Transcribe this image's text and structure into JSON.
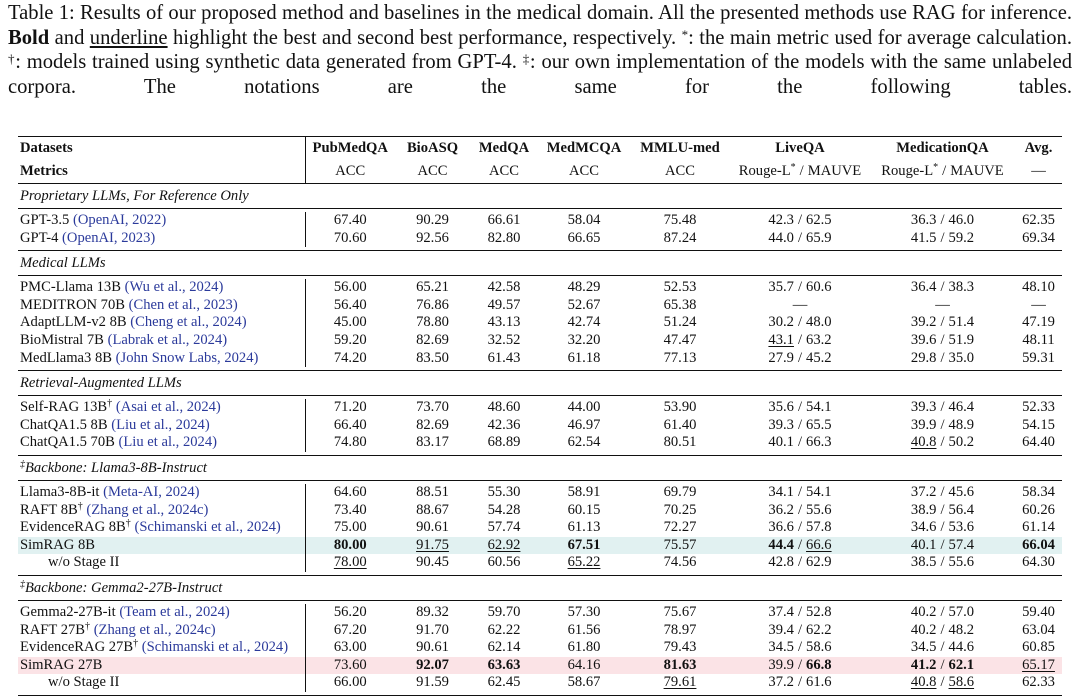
{
  "caption": [
    "Table 1: Results of our proposed method and baselines in the medical domain. All the presented methods use RAG for inference.",
    "Bold",
    "and",
    "underline",
    "highlight the best and second best performance, respectively.",
    "*",
    ": the main metric used for average calculation.",
    "†",
    ": models trained using synthetic data generated from GPT-4.",
    "‡",
    ": our own implementation of the models with the same unlabeled corpora. The notations are the same for the following tables."
  ],
  "table": {
    "separator": "/",
    "header": [
      "Datasets",
      "PubMedQA",
      "BioASQ",
      "MedQA",
      "MedMCQA",
      "MMLU-med",
      "LiveQA",
      "MedicationQA",
      "Avg."
    ],
    "metrics": [
      "Metrics",
      "ACC",
      "ACC",
      "ACC",
      "ACC",
      "ACC",
      [
        {
          "text": "Rouge-L",
          "sup": "*"
        },
        "MAUVE"
      ],
      [
        {
          "text": "Rouge-L",
          "sup": "*"
        },
        "MAUVE"
      ],
      "—"
    ],
    "sections": [
      {
        "title": "Proprietary LLMs, For Reference Only",
        "rows": [
          {
            "name": "GPT-3.5",
            "cite": "(OpenAI, 2022)",
            "cells": [
              "67.40",
              "90.29",
              "66.61",
              "58.04",
              "75.48",
              [
                "42.3",
                "62.5"
              ],
              [
                "36.3",
                "46.0"
              ],
              "62.35"
            ]
          },
          {
            "name": "GPT-4",
            "cite": "(OpenAI, 2023)",
            "cells": [
              "70.60",
              "92.56",
              "82.80",
              "66.65",
              "87.24",
              [
                "44.0",
                "65.9"
              ],
              [
                "41.5",
                "59.2"
              ],
              "69.34"
            ]
          }
        ]
      },
      {
        "title": "Medical LLMs",
        "rows": [
          {
            "name": "PMC-Llama 13B",
            "cite": "(Wu et al., 2024)",
            "cells": [
              "56.00",
              "65.21",
              "42.58",
              "48.29",
              "52.53",
              [
                "35.7",
                "60.6"
              ],
              [
                "36.4",
                "38.3"
              ],
              "48.10"
            ]
          },
          {
            "name": "MEDITRON 70B",
            "cite": "(Chen et al., 2023)",
            "cells": [
              "56.40",
              "76.86",
              "49.57",
              "52.67",
              "65.38",
              "—",
              "—",
              "—"
            ]
          },
          {
            "name": "AdaptLLM-v2 8B",
            "cite": "(Cheng et al., 2024)",
            "cells": [
              "45.00",
              "78.80",
              "43.13",
              "42.74",
              "51.24",
              [
                "30.2",
                "48.0"
              ],
              [
                "39.2",
                "51.4"
              ],
              "47.19"
            ]
          },
          {
            "name": "BioMistral 7B",
            "cite": "(Labrak et al., 2024)",
            "cells": [
              "59.20",
              "82.69",
              "32.52",
              "32.20",
              "47.47",
              [
                {
                  "text": "43.1",
                  "style": "underline"
                },
                "63.2"
              ],
              [
                "39.6",
                "51.9"
              ],
              "48.11"
            ]
          },
          {
            "name": "MedLlama3 8B",
            "cite": "(John Snow Labs, 2024)",
            "cells": [
              "74.20",
              "83.50",
              "61.43",
              "61.18",
              "77.13",
              [
                "27.9",
                "45.2"
              ],
              [
                "29.8",
                "35.0"
              ],
              "59.31"
            ]
          }
        ]
      },
      {
        "title": "Retrieval-Augmented LLMs",
        "rows": [
          {
            "name": "Self-RAG 13B",
            "sup": "†",
            "cite": "(Asai et al., 2024)",
            "cells": [
              "71.20",
              "73.70",
              "48.60",
              "44.00",
              "53.90",
              [
                "35.6",
                "54.1"
              ],
              [
                "39.3",
                "46.4"
              ],
              "52.33"
            ]
          },
          {
            "name": "ChatQA1.5 8B",
            "cite": "(Liu et al., 2024)",
            "cells": [
              "66.40",
              "82.69",
              "42.36",
              "46.97",
              "61.40",
              [
                "39.3",
                "65.5"
              ],
              [
                "39.9",
                "48.9"
              ],
              "54.15"
            ]
          },
          {
            "name": "ChatQA1.5 70B",
            "cite": "(Liu et al., 2024)",
            "cells": [
              "74.80",
              "83.17",
              "68.89",
              "62.54",
              "80.51",
              [
                "40.1",
                "66.3"
              ],
              [
                {
                  "text": "40.8",
                  "style": "underline"
                },
                "50.2"
              ],
              "64.40"
            ]
          }
        ]
      },
      {
        "title": "Backbone: Llama3-8B-Instruct",
        "sup": "‡",
        "rows": [
          {
            "name": "Llama3-8B-it",
            "cite": "(Meta-AI, 2024)",
            "cells": [
              "64.60",
              "88.51",
              "55.30",
              "58.91",
              "69.79",
              [
                "34.1",
                "54.1"
              ],
              [
                "37.2",
                "45.6"
              ],
              "58.34"
            ]
          },
          {
            "name": "RAFT 8B",
            "sup": "†",
            "cite": "(Zhang et al., 2024c)",
            "cells": [
              "73.40",
              "88.67",
              "54.28",
              "60.15",
              "70.25",
              [
                "36.2",
                "55.6"
              ],
              [
                "38.9",
                "56.4"
              ],
              "60.26"
            ]
          },
          {
            "name": "EvidenceRAG 8B",
            "sup": "†",
            "cite": "(Schimanski et al., 2024)",
            "cells": [
              "75.00",
              "90.61",
              "57.74",
              "61.13",
              "72.27",
              [
                "36.6",
                "57.8"
              ],
              [
                "34.6",
                "53.6"
              ],
              "61.14"
            ]
          },
          {
            "name": "SimRAG 8B",
            "highlight": "#e1f1f1",
            "cells": [
              {
                "text": "80.00",
                "style": "bold"
              },
              {
                "text": "91.75",
                "style": "underline"
              },
              {
                "text": "62.92",
                "style": "underline"
              },
              {
                "text": "67.51",
                "style": "bold"
              },
              "75.57",
              [
                {
                  "text": "44.4",
                  "style": "bold"
                },
                {
                  "text": "66.6",
                  "style": "underline"
                }
              ],
              [
                "40.1",
                "57.4"
              ],
              {
                "text": "66.04",
                "style": "bold"
              }
            ]
          },
          {
            "name": "w/o Stage II",
            "indent": true,
            "cells": [
              {
                "text": "78.00",
                "style": "underline"
              },
              "90.45",
              "60.56",
              {
                "text": "65.22",
                "style": "underline"
              },
              "74.56",
              [
                "42.8",
                "62.9"
              ],
              [
                "38.5",
                "55.6"
              ],
              "64.30"
            ]
          }
        ]
      },
      {
        "title": "Backbone: Gemma2-27B-Instruct",
        "sup": "‡",
        "rows": [
          {
            "name": "Gemma2-27B-it",
            "cite": "(Team et al., 2024)",
            "cells": [
              "56.20",
              "89.32",
              "59.70",
              "57.30",
              "75.67",
              [
                "37.4",
                "52.8"
              ],
              [
                "40.2",
                "57.0"
              ],
              "59.40"
            ]
          },
          {
            "name": "RAFT 27B",
            "sup": "†",
            "cite": "(Zhang et al., 2024c)",
            "cells": [
              "67.20",
              "91.70",
              "62.22",
              "61.56",
              "78.97",
              [
                "39.4",
                "62.2"
              ],
              [
                "40.2",
                "48.2"
              ],
              "63.04"
            ]
          },
          {
            "name": "EvidenceRAG 27B",
            "sup": "†",
            "cite": "(Schimanski et al., 2024)",
            "cells": [
              "63.00",
              "90.61",
              "62.14",
              "61.80",
              "79.43",
              [
                "34.5",
                "58.6"
              ],
              [
                "34.5",
                "44.6"
              ],
              "60.85"
            ]
          },
          {
            "name": "SimRAG 27B",
            "highlight": "#fbe3e6",
            "cells": [
              "73.60",
              {
                "text": "92.07",
                "style": "bold"
              },
              {
                "text": "63.63",
                "style": "bold"
              },
              "64.16",
              {
                "text": "81.63",
                "style": "bold"
              },
              [
                "39.9",
                {
                  "text": "66.8",
                  "style": "bold"
                }
              ],
              [
                {
                  "text": "41.2",
                  "style": "bold"
                },
                {
                  "text": "62.1",
                  "style": "bold"
                }
              ],
              {
                "text": "65.17",
                "style": "underline"
              }
            ]
          },
          {
            "name": "w/o Stage II",
            "indent": true,
            "cells": [
              "66.00",
              "91.59",
              "62.45",
              "58.67",
              {
                "text": "79.61",
                "style": "underline"
              },
              [
                "37.2",
                "61.6"
              ],
              [
                {
                  "text": "40.8",
                  "style": "underline"
                },
                {
                  "text": "58.6",
                  "style": "underline"
                }
              ],
              "62.33"
            ]
          }
        ]
      }
    ]
  }
}
